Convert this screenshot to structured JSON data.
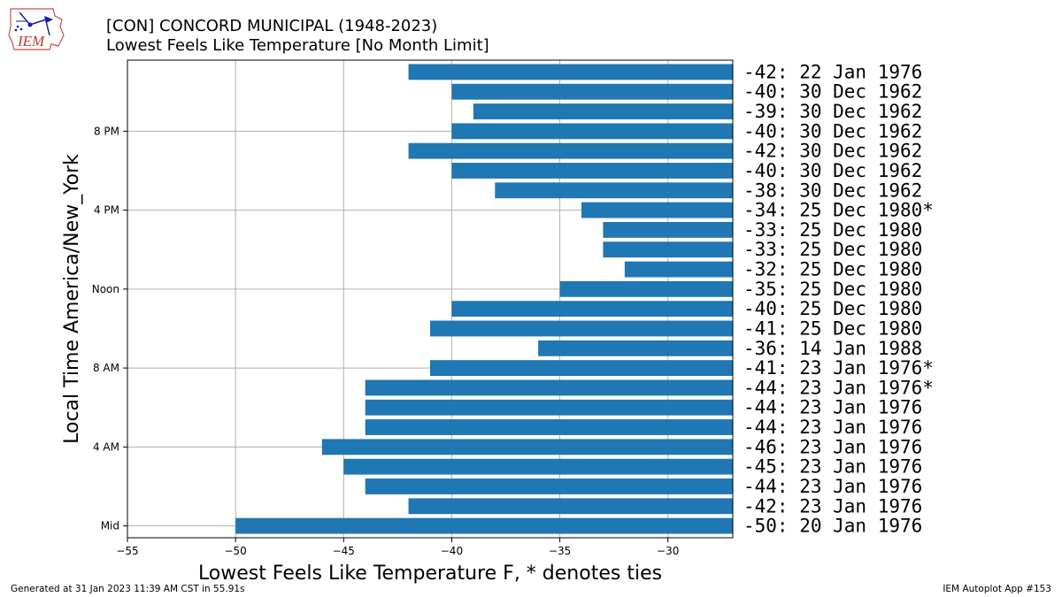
{
  "chart_data": {
    "type": "bar",
    "orientation": "horizontal",
    "title": "[CON] CONCORD MUNICIPAL (1948-2023)",
    "subtitle": "Lowest Feels Like Temperature [No Month Limit]",
    "xlabel": "Lowest Feels Like Temperature F, * denotes ties",
    "ylabel": "Local Time America/New_York",
    "xlim": [
      -55,
      -27
    ],
    "xticks": [
      -55,
      -50,
      -45,
      -40,
      -35,
      -30
    ],
    "xtick_labels": [
      "−55",
      "−50",
      "−45",
      "−40",
      "−35",
      "−30"
    ],
    "yticks": [
      {
        "hour": 0,
        "label": "Mid"
      },
      {
        "hour": 4,
        "label": "4 AM"
      },
      {
        "hour": 8,
        "label": "8 AM"
      },
      {
        "hour": 12,
        "label": "Noon"
      },
      {
        "hour": 16,
        "label": "4 PM"
      },
      {
        "hour": 20,
        "label": "8 PM"
      }
    ],
    "grid": true,
    "bar_color": "#1f77b4",
    "hours": [
      0,
      1,
      2,
      3,
      4,
      5,
      6,
      7,
      8,
      9,
      10,
      11,
      12,
      13,
      14,
      15,
      16,
      17,
      18,
      19,
      20,
      21,
      22,
      23
    ],
    "values": [
      -50,
      -42,
      -44,
      -45,
      -46,
      -44,
      -44,
      -44,
      -41,
      -36,
      -41,
      -40,
      -35,
      -32,
      -33,
      -33,
      -34,
      -38,
      -40,
      -42,
      -40,
      -39,
      -40,
      -42
    ],
    "labels": [
      "-50: 20 Jan 1976",
      "-42: 23 Jan 1976",
      "-44: 23 Jan 1976",
      "-45: 23 Jan 1976",
      "-46: 23 Jan 1976",
      "-44: 23 Jan 1976",
      "-44: 23 Jan 1976",
      "-44: 23 Jan 1976*",
      "-41: 23 Jan 1976*",
      "-36: 14 Jan 1988",
      "-41: 25 Dec 1980",
      "-40: 25 Dec 1980",
      "-35: 25 Dec 1980",
      "-32: 25 Dec 1980",
      "-33: 25 Dec 1980",
      "-33: 25 Dec 1980",
      "-34: 25 Dec 1980*",
      "-38: 30 Dec 1962",
      "-40: 30 Dec 1962",
      "-42: 30 Dec 1962",
      "-40: 30 Dec 1962",
      "-39: 30 Dec 1962",
      "-40: 30 Dec 1962",
      "-42: 22 Jan 1976"
    ]
  },
  "footer": {
    "left": "Generated at 31 Jan 2023 11:39 AM CST in 55.91s",
    "right": "IEM Autoplot App #153"
  },
  "logo": {
    "text": "IEM"
  }
}
